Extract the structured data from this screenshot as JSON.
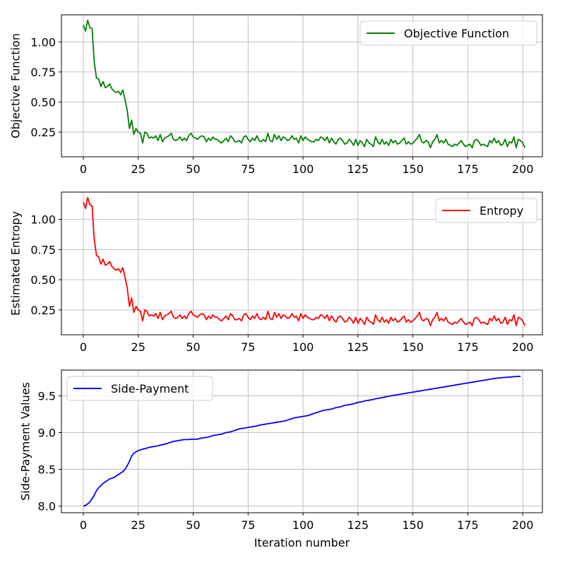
{
  "chart_data": [
    {
      "type": "line",
      "ylabel": "Objective Function",
      "xlabel": "",
      "xlim": [
        -9.95,
        208.95
      ],
      "ylim": [
        0.045,
        1.225
      ],
      "x_ticks": [
        0,
        25,
        50,
        75,
        100,
        125,
        150,
        175,
        200
      ],
      "y_ticks": [
        0.25,
        0.5,
        0.75,
        1.0
      ],
      "y_tick_labels": [
        "0.25",
        "0.50",
        "0.75",
        "1.00"
      ],
      "grid": true,
      "legend_position": "top-right",
      "series": [
        {
          "name": "Objective Function",
          "color": "#008000",
          "x_start": 0,
          "x_step": 1,
          "values": [
            1.14,
            1.09,
            1.18,
            1.12,
            1.11,
            0.83,
            0.7,
            0.69,
            0.63,
            0.67,
            0.62,
            0.63,
            0.65,
            0.61,
            0.59,
            0.58,
            0.59,
            0.56,
            0.6,
            0.52,
            0.43,
            0.28,
            0.35,
            0.23,
            0.28,
            0.25,
            0.24,
            0.16,
            0.25,
            0.24,
            0.2,
            0.21,
            0.2,
            0.22,
            0.18,
            0.23,
            0.17,
            0.2,
            0.21,
            0.22,
            0.24,
            0.19,
            0.18,
            0.19,
            0.21,
            0.18,
            0.2,
            0.18,
            0.22,
            0.24,
            0.21,
            0.2,
            0.19,
            0.21,
            0.22,
            0.21,
            0.17,
            0.2,
            0.18,
            0.21,
            0.19,
            0.19,
            0.17,
            0.16,
            0.18,
            0.2,
            0.17,
            0.22,
            0.2,
            0.17,
            0.17,
            0.18,
            0.16,
            0.21,
            0.22,
            0.19,
            0.17,
            0.2,
            0.18,
            0.22,
            0.18,
            0.17,
            0.19,
            0.17,
            0.24,
            0.18,
            0.17,
            0.23,
            0.19,
            0.22,
            0.18,
            0.21,
            0.2,
            0.18,
            0.19,
            0.22,
            0.19,
            0.2,
            0.16,
            0.22,
            0.18,
            0.21,
            0.19,
            0.18,
            0.17,
            0.17,
            0.19,
            0.18,
            0.21,
            0.2,
            0.18,
            0.21,
            0.16,
            0.2,
            0.17,
            0.15,
            0.19,
            0.2,
            0.18,
            0.15,
            0.16,
            0.19,
            0.17,
            0.14,
            0.19,
            0.14,
            0.18,
            0.16,
            0.13,
            0.19,
            0.16,
            0.15,
            0.13,
            0.21,
            0.17,
            0.15,
            0.19,
            0.15,
            0.17,
            0.14,
            0.19,
            0.16,
            0.18,
            0.15,
            0.16,
            0.18,
            0.2,
            0.15,
            0.17,
            0.15,
            0.16,
            0.18,
            0.2,
            0.23,
            0.17,
            0.16,
            0.18,
            0.17,
            0.12,
            0.17,
            0.19,
            0.23,
            0.16,
            0.18,
            0.16,
            0.19,
            0.15,
            0.14,
            0.13,
            0.15,
            0.14,
            0.16,
            0.18,
            0.15,
            0.13,
            0.14,
            0.15,
            0.12,
            0.18,
            0.19,
            0.17,
            0.14,
            0.15,
            0.14,
            0.13,
            0.18,
            0.16,
            0.2,
            0.16,
            0.18,
            0.14,
            0.15,
            0.19,
            0.13,
            0.17,
            0.16,
            0.21,
            0.12,
            0.19,
            0.18,
            0.16,
            0.12
          ]
        }
      ]
    },
    {
      "type": "line",
      "ylabel": "Estimated Entropy",
      "xlabel": "",
      "xlim": [
        -9.95,
        208.95
      ],
      "ylim": [
        0.045,
        1.225
      ],
      "x_ticks": [
        0,
        25,
        50,
        75,
        100,
        125,
        150,
        175,
        200
      ],
      "y_ticks": [
        0.25,
        0.5,
        0.75,
        1.0
      ],
      "y_tick_labels": [
        "0.25",
        "0.50",
        "0.75",
        "1.00"
      ],
      "grid": true,
      "legend_position": "top-right",
      "series": [
        {
          "name": "Entropy",
          "color": "#ff0000",
          "x_start": 0,
          "x_step": 1,
          "values": [
            1.14,
            1.09,
            1.18,
            1.12,
            1.11,
            0.83,
            0.7,
            0.69,
            0.63,
            0.67,
            0.62,
            0.63,
            0.65,
            0.61,
            0.59,
            0.58,
            0.59,
            0.56,
            0.6,
            0.52,
            0.43,
            0.28,
            0.35,
            0.23,
            0.28,
            0.25,
            0.24,
            0.16,
            0.25,
            0.24,
            0.2,
            0.21,
            0.2,
            0.22,
            0.18,
            0.23,
            0.17,
            0.2,
            0.21,
            0.22,
            0.24,
            0.19,
            0.18,
            0.19,
            0.21,
            0.18,
            0.2,
            0.18,
            0.22,
            0.24,
            0.21,
            0.2,
            0.19,
            0.21,
            0.22,
            0.21,
            0.17,
            0.2,
            0.18,
            0.21,
            0.19,
            0.19,
            0.17,
            0.16,
            0.18,
            0.2,
            0.17,
            0.22,
            0.2,
            0.17,
            0.17,
            0.18,
            0.16,
            0.21,
            0.22,
            0.19,
            0.17,
            0.2,
            0.18,
            0.22,
            0.18,
            0.17,
            0.19,
            0.17,
            0.24,
            0.18,
            0.17,
            0.23,
            0.19,
            0.22,
            0.18,
            0.21,
            0.2,
            0.18,
            0.19,
            0.22,
            0.19,
            0.2,
            0.16,
            0.22,
            0.18,
            0.21,
            0.19,
            0.18,
            0.17,
            0.17,
            0.19,
            0.18,
            0.21,
            0.2,
            0.18,
            0.21,
            0.16,
            0.2,
            0.17,
            0.15,
            0.19,
            0.2,
            0.18,
            0.15,
            0.16,
            0.19,
            0.17,
            0.14,
            0.19,
            0.14,
            0.18,
            0.16,
            0.13,
            0.19,
            0.16,
            0.15,
            0.13,
            0.21,
            0.17,
            0.15,
            0.19,
            0.15,
            0.17,
            0.14,
            0.19,
            0.16,
            0.18,
            0.15,
            0.16,
            0.18,
            0.2,
            0.15,
            0.17,
            0.15,
            0.16,
            0.18,
            0.2,
            0.23,
            0.17,
            0.16,
            0.18,
            0.17,
            0.12,
            0.17,
            0.19,
            0.23,
            0.16,
            0.18,
            0.16,
            0.19,
            0.15,
            0.14,
            0.13,
            0.15,
            0.14,
            0.16,
            0.18,
            0.15,
            0.13,
            0.14,
            0.15,
            0.12,
            0.18,
            0.19,
            0.17,
            0.14,
            0.15,
            0.14,
            0.13,
            0.18,
            0.16,
            0.2,
            0.16,
            0.18,
            0.14,
            0.15,
            0.19,
            0.13,
            0.17,
            0.16,
            0.21,
            0.12,
            0.19,
            0.18,
            0.16,
            0.12
          ]
        }
      ]
    },
    {
      "type": "line",
      "ylabel": "Side-Payment Values",
      "xlabel": "Iteration number",
      "xlim": [
        -9.95,
        208.95
      ],
      "ylim": [
        7.91,
        9.85
      ],
      "x_ticks": [
        0,
        25,
        50,
        75,
        100,
        125,
        150,
        175,
        200
      ],
      "y_ticks": [
        8.0,
        8.5,
        9.0,
        9.5
      ],
      "y_tick_labels": [
        "8.0",
        "8.5",
        "9.0",
        "9.5"
      ],
      "grid": true,
      "legend_position": "top-left",
      "series": [
        {
          "name": "Side-Payment",
          "color": "#0000ff",
          "x_start": 0,
          "x_step": 1,
          "values": [
            8.0,
            8.01,
            8.03,
            8.06,
            8.1,
            8.15,
            8.21,
            8.25,
            8.28,
            8.31,
            8.33,
            8.35,
            8.37,
            8.38,
            8.39,
            8.41,
            8.43,
            8.45,
            8.47,
            8.5,
            8.55,
            8.61,
            8.68,
            8.72,
            8.74,
            8.755,
            8.765,
            8.775,
            8.78,
            8.79,
            8.8,
            8.805,
            8.81,
            8.815,
            8.82,
            8.83,
            8.835,
            8.84,
            8.85,
            8.86,
            8.87,
            8.88,
            8.885,
            8.89,
            8.895,
            8.9,
            8.905,
            8.905,
            8.905,
            8.91,
            8.91,
            8.91,
            8.91,
            8.92,
            8.925,
            8.93,
            8.935,
            8.94,
            8.95,
            8.96,
            8.965,
            8.97,
            8.975,
            8.98,
            8.99,
            9.0,
            9.005,
            9.01,
            9.02,
            9.03,
            9.04,
            9.05,
            9.055,
            9.06,
            9.065,
            9.07,
            9.075,
            9.08,
            9.085,
            9.09,
            9.1,
            9.105,
            9.11,
            9.115,
            9.12,
            9.125,
            9.13,
            9.135,
            9.14,
            9.145,
            9.15,
            9.155,
            9.16,
            9.17,
            9.18,
            9.19,
            9.2,
            9.205,
            9.21,
            9.215,
            9.22,
            9.225,
            9.23,
            9.24,
            9.25,
            9.26,
            9.27,
            9.28,
            9.29,
            9.3,
            9.305,
            9.31,
            9.315,
            9.32,
            9.33,
            9.34,
            9.345,
            9.35,
            9.36,
            9.37,
            9.375,
            9.38,
            9.385,
            9.39,
            9.4,
            9.41,
            9.415,
            9.42,
            9.43,
            9.435,
            9.44,
            9.445,
            9.45,
            9.46,
            9.465,
            9.47,
            9.475,
            9.48,
            9.49,
            9.495,
            9.5,
            9.505,
            9.51,
            9.515,
            9.52,
            9.525,
            9.53,
            9.535,
            9.54,
            9.545,
            9.55,
            9.555,
            9.56,
            9.565,
            9.57,
            9.575,
            9.58,
            9.585,
            9.59,
            9.595,
            9.6,
            9.605,
            9.61,
            9.615,
            9.62,
            9.625,
            9.63,
            9.635,
            9.64,
            9.645,
            9.65,
            9.655,
            9.66,
            9.665,
            9.67,
            9.675,
            9.68,
            9.685,
            9.69,
            9.695,
            9.7,
            9.705,
            9.71,
            9.715,
            9.72,
            9.725,
            9.73,
            9.735,
            9.74,
            9.742,
            9.745,
            9.748,
            9.75,
            9.752,
            9.755,
            9.757,
            9.76,
            9.762,
            9.764,
            9.765
          ]
        }
      ]
    }
  ]
}
